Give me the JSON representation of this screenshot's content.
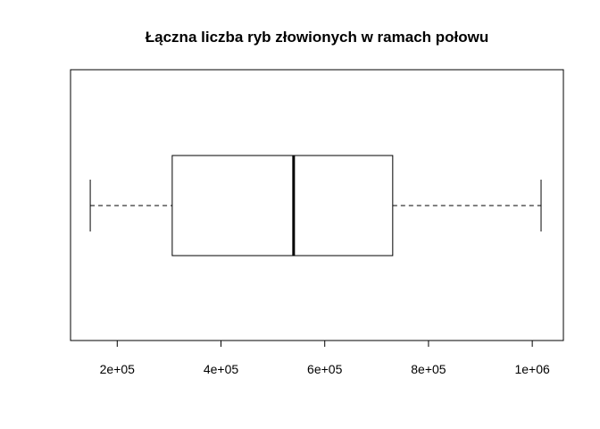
{
  "chart_data": {
    "type": "boxplot",
    "orientation": "horizontal",
    "title": "Łączna liczba ryb złowionych w ramach połowu",
    "xlabel": "",
    "ylabel": "",
    "xlim": [
      110000,
      1060000
    ],
    "x_ticks": [
      200000,
      400000,
      600000,
      800000,
      1000000
    ],
    "x_tick_labels": [
      "2e+05",
      "4e+05",
      "6e+05",
      "8e+05",
      "1e+06"
    ],
    "box": {
      "whisker_low": 148000,
      "q1": 306000,
      "median": 540000,
      "q3": 731000,
      "whisker_high": 1017000
    },
    "grid": false,
    "colors": {
      "box_fill": "#ffffff",
      "stroke": "#000000"
    }
  }
}
